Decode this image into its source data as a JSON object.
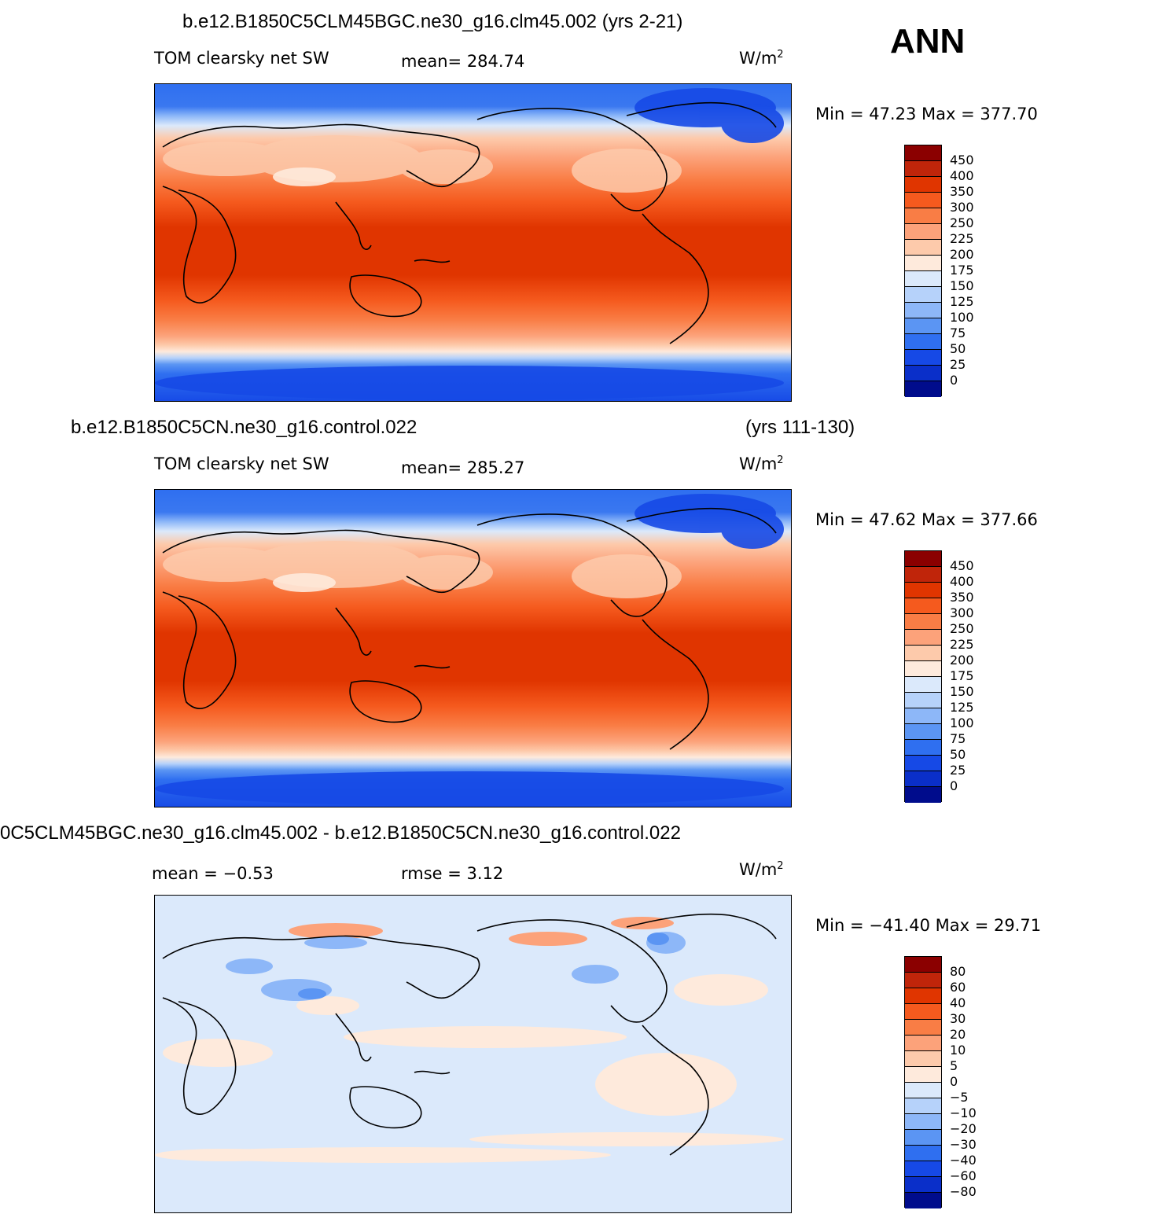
{
  "season": "ANN",
  "panels": [
    {
      "title_left": "b.e12.B1850C5CLM45BGC.ne30_g16.clm45.002 (yrs 2-21)",
      "title_right": "",
      "variable": "TOM clearsky net SW",
      "stat1": "mean= 284.74",
      "stat2": "",
      "units_base": "W/m",
      "units_exp": "2",
      "minmax": "Min =   47.23 Max =  377.70",
      "colorbar": {
        "colors": [
          "#8b0000",
          "#c0250a",
          "#e03500",
          "#f55a1e",
          "#f97d45",
          "#fca27a",
          "#fdcaab",
          "#feeadc",
          "#dbe9fb",
          "#b6d2fa",
          "#8db7f8",
          "#5b95f3",
          "#2f6ff0",
          "#1649e6",
          "#0a2fc9",
          "#000c8c"
        ],
        "labels": [
          "450",
          "400",
          "350",
          "300",
          "250",
          "225",
          "200",
          "175",
          "150",
          "125",
          "100",
          "75",
          "50",
          "25",
          "0"
        ]
      }
    },
    {
      "title_left": "b.e12.B1850C5CN.ne30_g16.control.022",
      "title_right": "(yrs 111-130)",
      "variable": "TOM clearsky net SW",
      "stat1": "mean= 285.27",
      "stat2": "",
      "units_base": "W/m",
      "units_exp": "2",
      "minmax": "Min =   47.62 Max =  377.66",
      "colorbar": {
        "colors": [
          "#8b0000",
          "#c0250a",
          "#e03500",
          "#f55a1e",
          "#f97d45",
          "#fca27a",
          "#fdcaab",
          "#feeadc",
          "#dbe9fb",
          "#b6d2fa",
          "#8db7f8",
          "#5b95f3",
          "#2f6ff0",
          "#1649e6",
          "#0a2fc9",
          "#000c8c"
        ],
        "labels": [
          "450",
          "400",
          "350",
          "300",
          "250",
          "225",
          "200",
          "175",
          "150",
          "125",
          "100",
          "75",
          "50",
          "25",
          "0"
        ]
      }
    },
    {
      "title_left": "0C5CLM45BGC.ne30_g16.clm45.002 - b.e12.B1850C5CN.ne30_g16.control.022",
      "title_right": "",
      "variable": "",
      "stat1": "mean =   −0.53",
      "stat2": "rmse =    3.12",
      "units_base": "W/m",
      "units_exp": "2",
      "minmax": "Min = −41.40 Max =   29.71",
      "colorbar": {
        "colors": [
          "#8b0000",
          "#c0250a",
          "#e03500",
          "#f55a1e",
          "#f97d45",
          "#fca27a",
          "#fdcaab",
          "#feeadc",
          "#dbe9fb",
          "#b6d2fa",
          "#8db7f8",
          "#5b95f3",
          "#2f6ff0",
          "#1649e6",
          "#0a2fc9",
          "#000c8c"
        ],
        "labels": [
          "80",
          "60",
          "40",
          "30",
          "20",
          "10",
          "5",
          "0",
          "−5",
          "−10",
          "−20",
          "−30",
          "−40",
          "−60",
          "−80"
        ]
      }
    }
  ]
}
